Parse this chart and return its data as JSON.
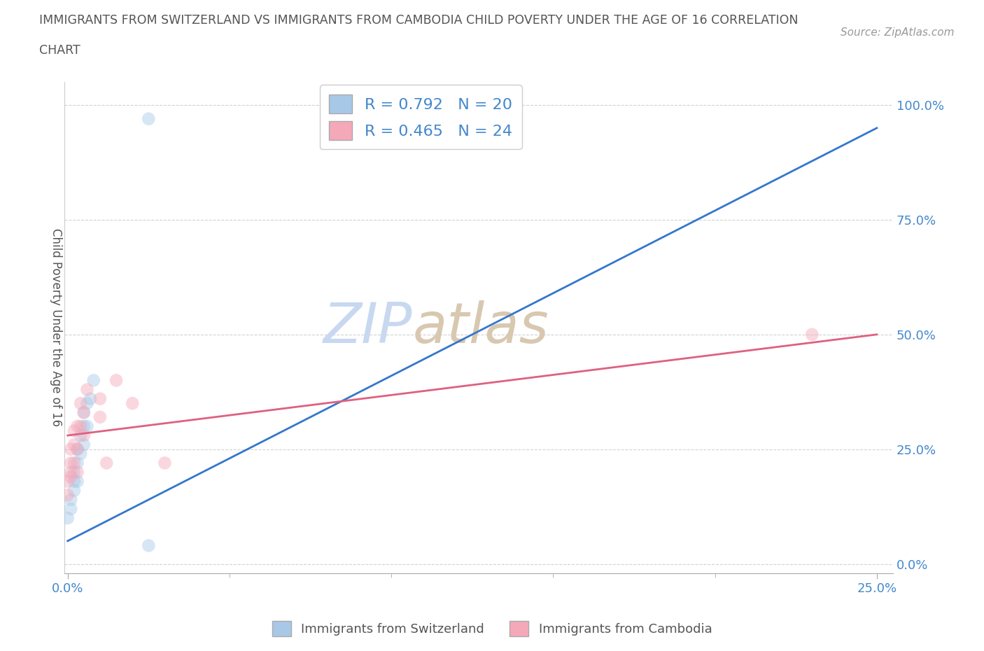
{
  "title_line1": "IMMIGRANTS FROM SWITZERLAND VS IMMIGRANTS FROM CAMBODIA CHILD POVERTY UNDER THE AGE OF 16 CORRELATION",
  "title_line2": "CHART",
  "source_text": "Source: ZipAtlas.com",
  "ylabel": "Child Poverty Under the Age of 16",
  "xlabel_swiss": "Immigrants from Switzerland",
  "xlabel_camb": "Immigrants from Cambodia",
  "r_swiss": 0.792,
  "n_swiss": 20,
  "r_camb": 0.465,
  "n_camb": 24,
  "xlim": [
    -0.001,
    0.255
  ],
  "ylim": [
    -0.02,
    1.05
  ],
  "swiss_color": "#a8c8e8",
  "camb_color": "#f4a8b8",
  "swiss_line_color": "#3377cc",
  "camb_line_color": "#e06080",
  "zip_color": "#c8d8f0",
  "atlas_color": "#d8c8b0",
  "background_color": "#ffffff",
  "grid_color": "#cccccc",
  "title_color": "#555555",
  "axis_label_color": "#555555",
  "tick_color": "#4488cc",
  "legend_r_color": "#4488cc",
  "swiss_x": [
    0.0,
    0.001,
    0.001,
    0.002,
    0.002,
    0.002,
    0.003,
    0.003,
    0.003,
    0.004,
    0.004,
    0.005,
    0.005,
    0.005,
    0.006,
    0.006,
    0.007,
    0.008,
    0.025,
    0.025
  ],
  "swiss_y": [
    0.1,
    0.12,
    0.14,
    0.16,
    0.18,
    0.2,
    0.18,
    0.22,
    0.25,
    0.24,
    0.28,
    0.26,
    0.3,
    0.33,
    0.3,
    0.35,
    0.36,
    0.4,
    0.04,
    0.97
  ],
  "camb_x": [
    0.0,
    0.0,
    0.001,
    0.001,
    0.001,
    0.001,
    0.002,
    0.002,
    0.002,
    0.003,
    0.003,
    0.003,
    0.004,
    0.004,
    0.005,
    0.005,
    0.006,
    0.01,
    0.01,
    0.012,
    0.015,
    0.02,
    0.03,
    0.23
  ],
  "camb_y": [
    0.15,
    0.18,
    0.19,
    0.2,
    0.22,
    0.25,
    0.22,
    0.26,
    0.29,
    0.2,
    0.25,
    0.3,
    0.3,
    0.35,
    0.28,
    0.33,
    0.38,
    0.32,
    0.36,
    0.22,
    0.4,
    0.35,
    0.22,
    0.5
  ],
  "swiss_trend_x": [
    0.0,
    0.25
  ],
  "swiss_trend_y": [
    0.05,
    0.95
  ],
  "camb_trend_x": [
    0.0,
    0.25
  ],
  "camb_trend_y": [
    0.28,
    0.5
  ],
  "marker_size": 180,
  "marker_alpha": 0.45
}
